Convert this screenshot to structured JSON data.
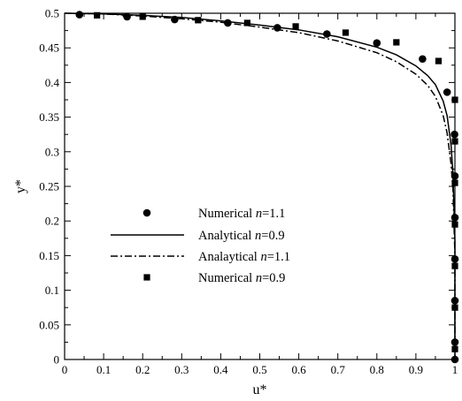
{
  "chart_data": {
    "type": "line",
    "xlabel": "u*",
    "ylabel": "y*",
    "xlim": [
      0,
      1
    ],
    "ylim": [
      0,
      0.5
    ],
    "x_ticks": [
      "0",
      "0.1",
      "0.2",
      "0.3",
      "0.4",
      "0.5",
      "0.6",
      "0.7",
      "0.8",
      "0.9",
      "1"
    ],
    "y_ticks": [
      "0",
      "0.05",
      "0.1",
      "0.15",
      "0.2",
      "0.25",
      "0.3",
      "0.35",
      "0.4",
      "0.45",
      "0.5"
    ],
    "grid": false,
    "legend_position": "center-left",
    "legend_order": [
      0,
      1,
      2,
      3
    ],
    "series": [
      {
        "name": "Numerical n=1.1",
        "label_prefix": "Numerical",
        "label_n": "n",
        "label_value": "=1.1",
        "style": "circle-marker",
        "color": "#000000",
        "x": [
          0.038,
          0.16,
          0.282,
          0.418,
          0.545,
          0.672,
          0.8,
          0.917,
          0.98,
          0.999,
          1.0,
          1.0,
          1.0,
          1.0,
          1.0,
          1.0
        ],
        "y": [
          0.498,
          0.495,
          0.491,
          0.486,
          0.479,
          0.47,
          0.457,
          0.434,
          0.386,
          0.325,
          0.265,
          0.205,
          0.145,
          0.085,
          0.025,
          0.0
        ]
      },
      {
        "name": "Analytical n=0.9",
        "label_prefix": "Analytical",
        "label_n": "n",
        "label_value": "=0.9",
        "style": "solid-line",
        "color": "#000000",
        "x": [
          0.0,
          0.1,
          0.2,
          0.3,
          0.4,
          0.5,
          0.6,
          0.7,
          0.8,
          0.85,
          0.9,
          0.93,
          0.95,
          0.97,
          0.98,
          0.99,
          0.995,
          1.0,
          1.0
        ],
        "y": [
          0.5,
          0.499,
          0.497,
          0.494,
          0.489,
          0.483,
          0.476,
          0.466,
          0.451,
          0.44,
          0.424,
          0.41,
          0.397,
          0.373,
          0.352,
          0.31,
          0.27,
          0.17,
          0.0
        ]
      },
      {
        "name": "Analaytical n=1.1",
        "label_prefix": "Analaytical",
        "label_n": "n",
        "label_value": "=1.1",
        "style": "dash-dot-line",
        "color": "#000000",
        "x": [
          0.0,
          0.1,
          0.2,
          0.3,
          0.4,
          0.5,
          0.6,
          0.7,
          0.8,
          0.85,
          0.9,
          0.93,
          0.95,
          0.97,
          0.98,
          0.99,
          0.995,
          1.0,
          1.0
        ],
        "y": [
          0.5,
          0.499,
          0.496,
          0.492,
          0.487,
          0.48,
          0.472,
          0.46,
          0.443,
          0.43,
          0.412,
          0.396,
          0.38,
          0.352,
          0.327,
          0.283,
          0.245,
          0.15,
          0.0
        ]
      },
      {
        "name": "Numerical n=0.9",
        "label_prefix": "Numerical",
        "label_n": "n",
        "label_value": "=0.9",
        "style": "square-marker",
        "color": "#000000",
        "x": [
          0.083,
          0.2,
          0.342,
          0.468,
          0.592,
          0.72,
          0.85,
          0.958,
          1.0,
          1.0,
          1.0,
          1.0,
          1.0,
          1.0,
          1.0
        ],
        "y": [
          0.497,
          0.495,
          0.49,
          0.486,
          0.481,
          0.472,
          0.458,
          0.431,
          0.375,
          0.315,
          0.255,
          0.195,
          0.135,
          0.075,
          0.015
        ]
      }
    ]
  }
}
